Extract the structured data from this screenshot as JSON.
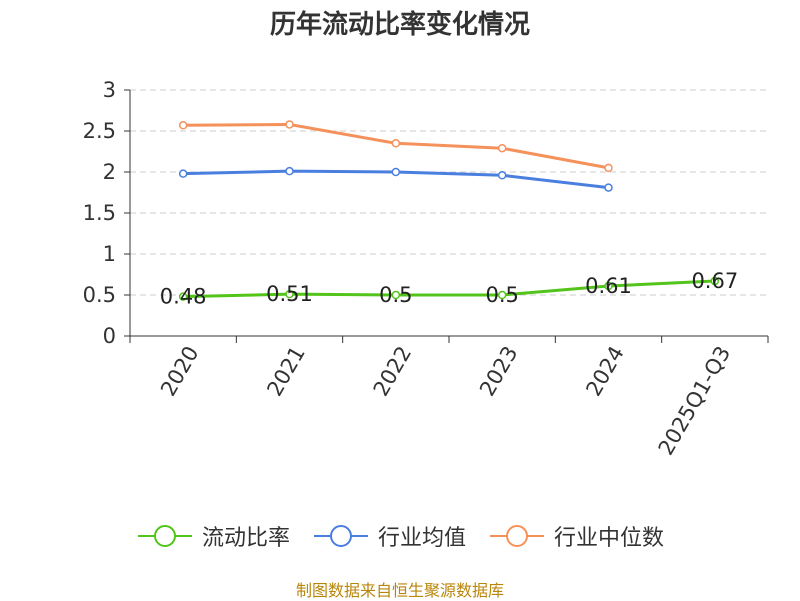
{
  "chart_data": {
    "type": "line",
    "title": "历年流动比率变化情况",
    "categories": [
      "2020",
      "2021",
      "2022",
      "2023",
      "2024",
      "2025Q1-Q3"
    ],
    "ylim": [
      0,
      3
    ],
    "yticks": [
      "0",
      "0.5",
      "1",
      "1.5",
      "2",
      "2.5",
      "3"
    ],
    "grid": true,
    "legend_position": "bottom",
    "series": [
      {
        "name": "流动比率",
        "color": "#52c41a",
        "values": [
          0.48,
          0.51,
          0.5,
          0.5,
          0.61,
          0.67
        ],
        "labels": [
          "0.48",
          "0.51",
          "0.5",
          "0.5",
          "0.61",
          "0.67"
        ]
      },
      {
        "name": "行业均值",
        "color": "#4a7fe0",
        "values": [
          1.98,
          2.01,
          2.0,
          1.96,
          1.81,
          null
        ]
      },
      {
        "name": "行业中位数",
        "color": "#f5915a",
        "values": [
          2.57,
          2.58,
          2.35,
          2.29,
          2.05,
          null
        ]
      }
    ]
  },
  "footer": {
    "source": "制图数据来自恒生聚源数据库"
  }
}
